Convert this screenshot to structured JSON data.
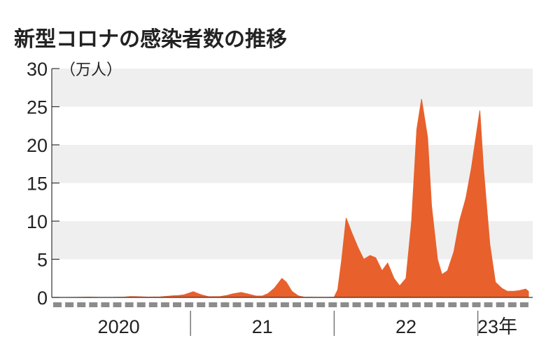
{
  "chart_data": {
    "type": "area",
    "title": "新型コロナの感染者数の推移",
    "unit_label": "（万人）",
    "ylim": [
      0,
      30
    ],
    "yticks": [
      "0",
      "5",
      "10",
      "15",
      "20",
      "25",
      "30"
    ],
    "x_labels": [
      {
        "label": "2020",
        "date": "2020-07-01"
      },
      {
        "label": "21",
        "date": "2021-07-01"
      },
      {
        "label": "22",
        "date": "2022-07-01"
      },
      {
        "label": "23年",
        "date": "2023-02-20"
      }
    ],
    "year_separators": [
      "2021-01-01",
      "2022-01-01",
      "2023-01-01"
    ],
    "xlim": [
      "2020-01-01",
      "2023-05-10"
    ],
    "grid": "alternating horizontal bands",
    "colors": {
      "series": "#e8602c",
      "band": "#efefef",
      "month_dash": "#8c8c8c",
      "axis": "#333333"
    },
    "series": [
      {
        "points": [
          [
            "2020-01-15",
            0
          ],
          [
            "2020-02-15",
            0
          ],
          [
            "2020-03-15",
            0.01
          ],
          [
            "2020-04-15",
            0.05
          ],
          [
            "2020-05-15",
            0.01
          ],
          [
            "2020-06-15",
            0.01
          ],
          [
            "2020-07-15",
            0.05
          ],
          [
            "2020-08-01",
            0.12
          ],
          [
            "2020-08-15",
            0.1
          ],
          [
            "2020-09-15",
            0.05
          ],
          [
            "2020-10-15",
            0.06
          ],
          [
            "2020-11-15",
            0.2
          ],
          [
            "2020-12-01",
            0.25
          ],
          [
            "2020-12-15",
            0.35
          ],
          [
            "2021-01-08",
            0.75
          ],
          [
            "2021-01-20",
            0.5
          ],
          [
            "2021-02-01",
            0.3
          ],
          [
            "2021-02-15",
            0.12
          ],
          [
            "2021-03-01",
            0.1
          ],
          [
            "2021-03-15",
            0.12
          ],
          [
            "2021-04-01",
            0.25
          ],
          [
            "2021-04-15",
            0.45
          ],
          [
            "2021-05-08",
            0.65
          ],
          [
            "2021-05-25",
            0.45
          ],
          [
            "2021-06-15",
            0.18
          ],
          [
            "2021-07-01",
            0.18
          ],
          [
            "2021-07-15",
            0.5
          ],
          [
            "2021-08-01",
            1.2
          ],
          [
            "2021-08-20",
            2.5
          ],
          [
            "2021-09-01",
            2.0
          ],
          [
            "2021-09-15",
            0.8
          ],
          [
            "2021-10-01",
            0.2
          ],
          [
            "2021-10-15",
            0.05
          ],
          [
            "2021-11-15",
            0.02
          ],
          [
            "2021-12-15",
            0.02
          ],
          [
            "2022-01-01",
            0.05
          ],
          [
            "2022-01-10",
            1
          ],
          [
            "2022-01-20",
            5
          ],
          [
            "2022-02-01",
            10.4
          ],
          [
            "2022-02-15",
            8.5
          ],
          [
            "2022-03-01",
            6.5
          ],
          [
            "2022-03-15",
            5
          ],
          [
            "2022-04-01",
            5.5
          ],
          [
            "2022-04-15",
            5.2
          ],
          [
            "2022-05-01",
            3.5
          ],
          [
            "2022-05-15",
            4.5
          ],
          [
            "2022-06-01",
            2.5
          ],
          [
            "2022-06-15",
            1.5
          ],
          [
            "2022-07-01",
            2.5
          ],
          [
            "2022-07-15",
            10
          ],
          [
            "2022-07-28",
            22
          ],
          [
            "2022-08-10",
            26
          ],
          [
            "2022-08-25",
            21
          ],
          [
            "2022-09-05",
            12
          ],
          [
            "2022-09-20",
            5
          ],
          [
            "2022-10-01",
            3
          ],
          [
            "2022-10-15",
            3.5
          ],
          [
            "2022-11-01",
            6
          ],
          [
            "2022-11-15",
            10
          ],
          [
            "2022-12-01",
            13
          ],
          [
            "2022-12-15",
            17
          ],
          [
            "2023-01-06",
            24.5
          ],
          [
            "2023-01-15",
            17
          ],
          [
            "2023-02-01",
            7
          ],
          [
            "2023-02-15",
            2
          ],
          [
            "2023-03-01",
            1.2
          ],
          [
            "2023-03-15",
            0.8
          ],
          [
            "2023-04-01",
            0.8
          ],
          [
            "2023-04-15",
            0.9
          ],
          [
            "2023-05-01",
            1.1
          ],
          [
            "2023-05-08",
            0.8
          ]
        ]
      }
    ]
  }
}
